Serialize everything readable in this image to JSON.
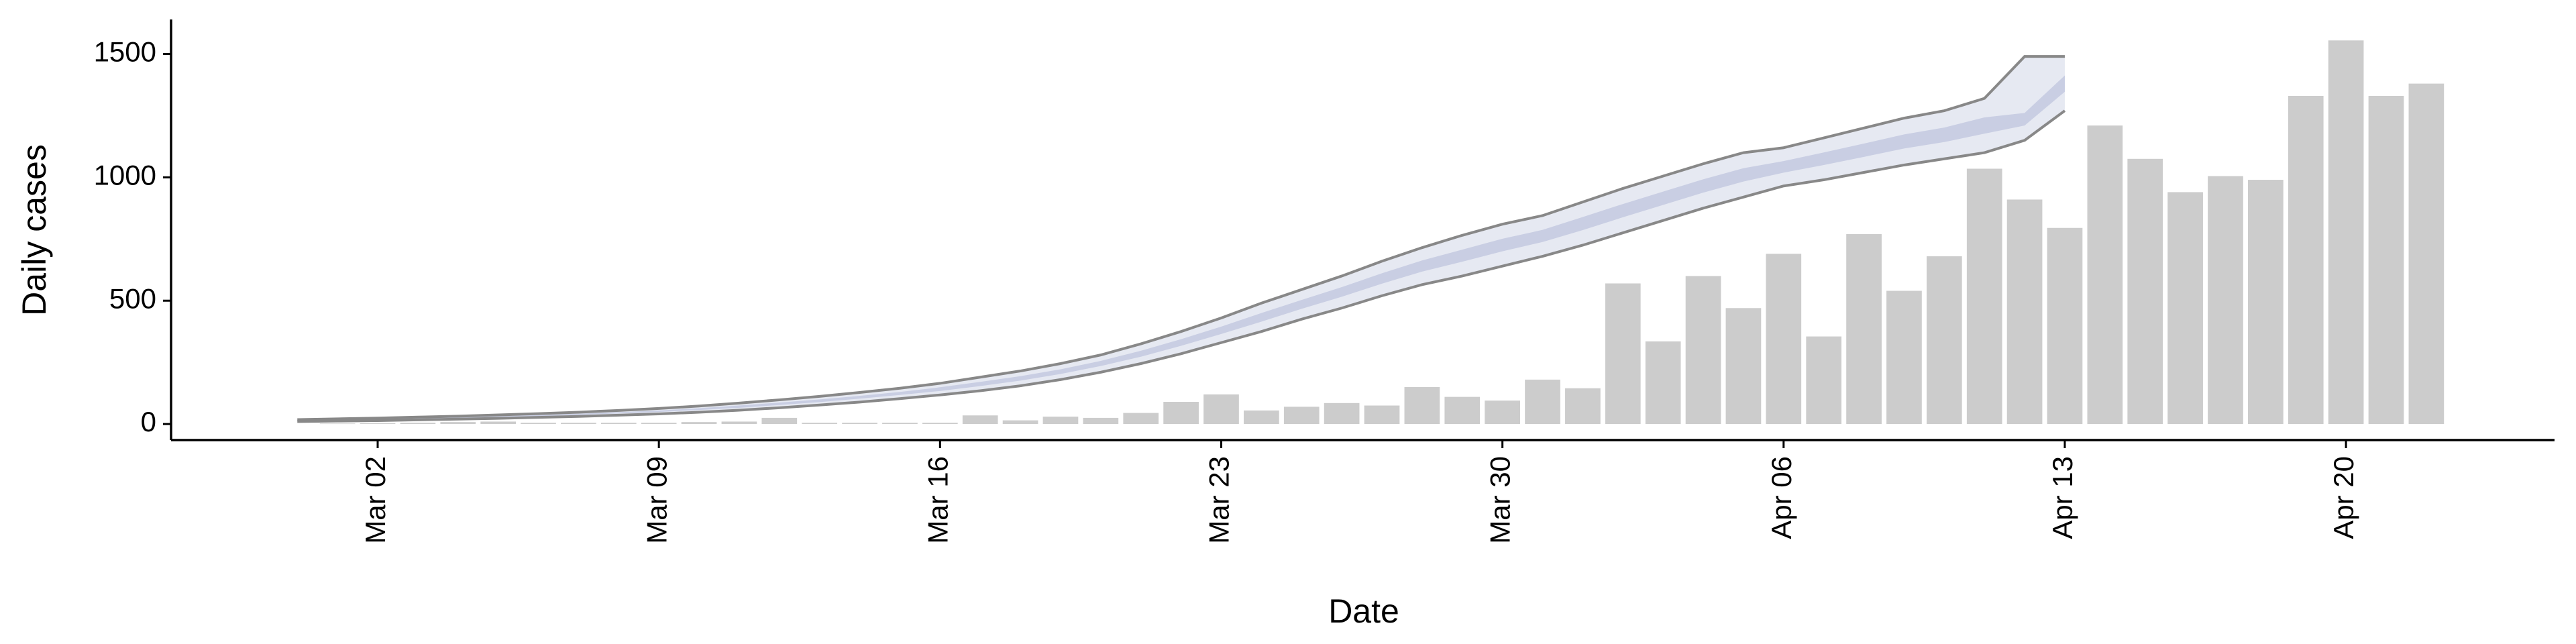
{
  "chart_data": {
    "type": "bar",
    "x_label": "Date",
    "y_label": "Daily cases",
    "x": [
      "Feb 29",
      "Mar 01",
      "Mar 02",
      "Mar 03",
      "Mar 04",
      "Mar 05",
      "Mar 06",
      "Mar 07",
      "Mar 08",
      "Mar 09",
      "Mar 10",
      "Mar 11",
      "Mar 12",
      "Mar 13",
      "Mar 14",
      "Mar 15",
      "Mar 16",
      "Mar 17",
      "Mar 18",
      "Mar 19",
      "Mar 20",
      "Mar 21",
      "Mar 22",
      "Mar 23",
      "Mar 24",
      "Mar 25",
      "Mar 26",
      "Mar 27",
      "Mar 28",
      "Mar 29",
      "Mar 30",
      "Mar 31",
      "Apr 01",
      "Apr 02",
      "Apr 03",
      "Apr 04",
      "Apr 05",
      "Apr 06",
      "Apr 07",
      "Apr 08",
      "Apr 09",
      "Apr 10",
      "Apr 11",
      "Apr 12",
      "Apr 13",
      "Apr 14",
      "Apr 15",
      "Apr 16",
      "Apr 17",
      "Apr 18",
      "Apr 19",
      "Apr 20",
      "Apr 21",
      "Apr 22"
    ],
    "values": [
      0,
      2,
      3,
      5,
      8,
      10,
      5,
      5,
      5,
      5,
      8,
      10,
      25,
      5,
      5,
      5,
      5,
      35,
      15,
      30,
      25,
      45,
      90,
      120,
      55,
      70,
      85,
      75,
      150,
      110,
      95,
      180,
      145,
      570,
      335,
      600,
      470,
      690,
      355,
      770,
      540,
      680,
      1035,
      910,
      795,
      1210,
      1075,
      940,
      1005,
      990,
      1330,
      1555,
      1330,
      1380
    ],
    "color": "#cccccc",
    "model": {
      "upper": [
        18,
        21,
        24,
        28,
        32,
        37,
        42,
        48,
        55,
        63,
        73,
        85,
        98,
        112,
        128,
        145,
        165,
        190,
        215,
        245,
        280,
        325,
        375,
        430,
        490,
        545,
        600,
        660,
        715,
        765,
        810,
        845,
        900,
        955,
        1005,
        1055,
        1100,
        1120,
        1160,
        1200,
        1240,
        1270,
        1320,
        1490,
        1490,
        null,
        null,
        null,
        null,
        null,
        null,
        null,
        null,
        null
      ],
      "lower": [
        10,
        12,
        14,
        17,
        20,
        23,
        27,
        31,
        36,
        41,
        48,
        56,
        66,
        77,
        89,
        103,
        118,
        135,
        155,
        180,
        210,
        245,
        285,
        330,
        375,
        425,
        470,
        520,
        565,
        600,
        640,
        680,
        725,
        775,
        825,
        875,
        920,
        965,
        990,
        1020,
        1050,
        1075,
        1100,
        1150,
        1270,
        null,
        null,
        null,
        null,
        null,
        null,
        null,
        null,
        null
      ],
      "inner_lower": [
        13,
        15,
        18,
        21,
        24,
        28,
        32,
        37,
        43,
        49,
        57,
        66,
        77,
        89,
        103,
        118,
        134,
        154,
        176,
        203,
        235,
        273,
        317,
        365,
        415,
        467,
        516,
        569,
        618,
        658,
        700,
        738,
        786,
        838,
        888,
        938,
        983,
        1019,
        1050,
        1083,
        1117,
        1143,
        1177,
        1210,
        1347,
        null,
        null,
        null,
        null,
        null,
        null,
        null,
        null,
        null
      ],
      "inner_upper": [
        15,
        18,
        21,
        24,
        28,
        32,
        37,
        42,
        48,
        55,
        64,
        75,
        87,
        100,
        114,
        130,
        149,
        171,
        194,
        222,
        256,
        297,
        344,
        395,
        450,
        503,
        555,
        611,
        663,
        707,
        751,
        787,
        839,
        892,
        942,
        992,
        1037,
        1066,
        1101,
        1137,
        1174,
        1202,
        1243,
        1261,
        1413,
        null,
        null,
        null,
        null,
        null,
        null,
        null,
        null,
        null
      ],
      "line_color": "#888888",
      "outer_color": "#e6e9f2",
      "inner_color": "#c9cee3"
    },
    "ylim": [
      -65,
      1640
    ],
    "yticks": [
      0,
      500,
      1000,
      1500
    ],
    "xticks": [
      "Mar 02",
      "Mar 09",
      "Mar 16",
      "Mar 23",
      "Mar 30",
      "Apr 06",
      "Apr 13",
      "Apr 20"
    ]
  }
}
